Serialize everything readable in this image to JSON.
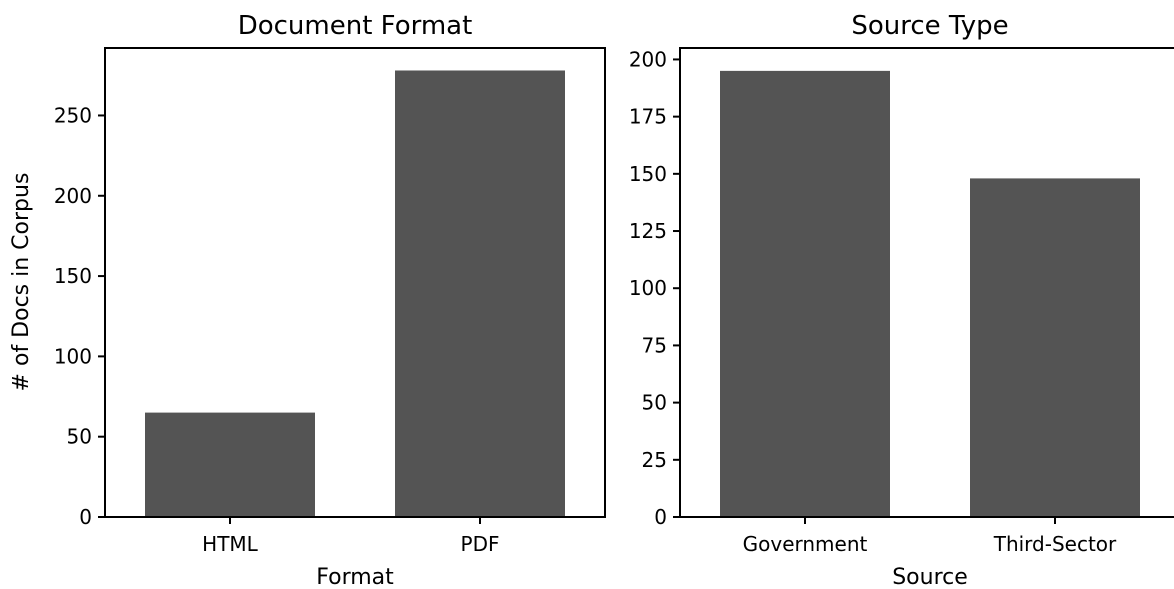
{
  "chart_data": [
    {
      "type": "bar",
      "title": "Document Format",
      "categories": [
        "HTML",
        "PDF"
      ],
      "values": [
        65,
        278
      ],
      "xlabel": "Format",
      "ylabel": "# of Docs in Corpus",
      "ylim": [
        0,
        292
      ],
      "yticks": [
        0,
        50,
        100,
        150,
        200,
        250
      ],
      "bar_color": "#545454",
      "grid": false
    },
    {
      "type": "bar",
      "title": "Source Type",
      "categories": [
        "Government",
        "Third-Sector"
      ],
      "values": [
        195,
        148
      ],
      "xlabel": "Source",
      "ylabel": "",
      "ylim": [
        0,
        205
      ],
      "yticks": [
        0,
        25,
        50,
        75,
        100,
        125,
        150,
        175,
        200
      ],
      "bar_color": "#545454",
      "grid": false
    }
  ]
}
